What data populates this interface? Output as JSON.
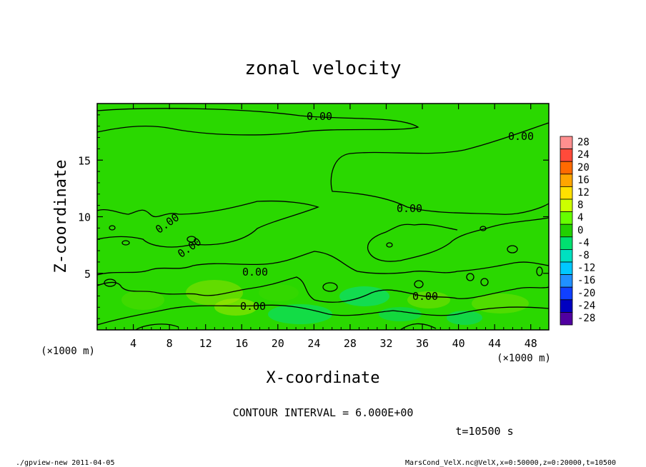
{
  "chart_data": {
    "type": "heatmap",
    "title": "zonal velocity",
    "xlabel": "X-coordinate",
    "ylabel": "Z-coordinate",
    "x_unit": "(×1000 m)",
    "z_unit": "(×1000 m)",
    "xlim": [
      0,
      50
    ],
    "ylim": [
      0,
      20
    ],
    "x_ticks": [
      "4",
      "8",
      "12",
      "16",
      "20",
      "24",
      "28",
      "32",
      "36",
      "40",
      "44",
      "48"
    ],
    "y_ticks": [
      "5",
      "10",
      "15"
    ],
    "contour_interval": "CONTOUR INTERVAL = 6.000E+00",
    "contour_labels": [
      "0.00",
      "0.00",
      "0.00",
      "0.00",
      "0.00",
      "0.00",
      "0.00",
      "0.00"
    ],
    "colorbar": {
      "levels": [
        "28",
        "24",
        "20",
        "16",
        "12",
        "8",
        "4",
        "0",
        "-4",
        "-8",
        "-12",
        "-16",
        "-20",
        "-24",
        "-28"
      ],
      "colors": [
        "#ff8f8f",
        "#ff4a3a",
        "#ff6a00",
        "#ffa500",
        "#ffe000",
        "#ccff00",
        "#66ff00",
        "#22d000",
        "#00e070",
        "#00e0c0",
        "#00c8ff",
        "#2090ff",
        "#1040ff",
        "#0000c0",
        "#5000a0"
      ]
    },
    "time": "t=10500 s"
  },
  "footer": {
    "left": "./gpview-new  2011-04-05",
    "right": "MarsCond_VelX.nc@VelX,x=0:50000,z=0:20000,t=10500"
  }
}
